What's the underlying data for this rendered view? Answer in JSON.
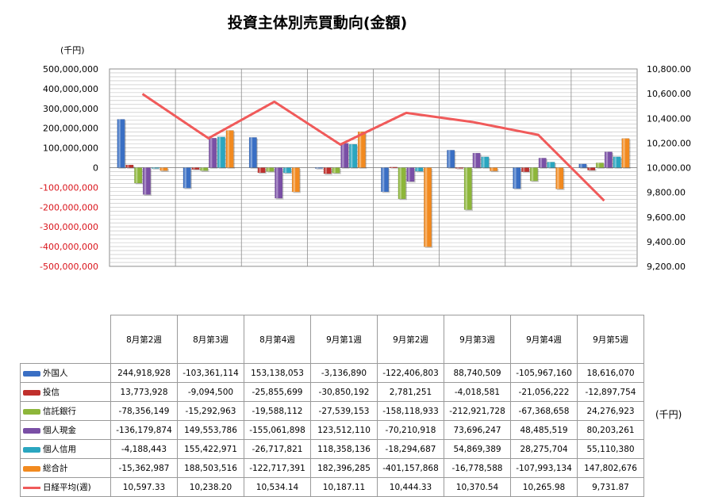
{
  "chart_data": {
    "type": "bar",
    "title": "投資主体別売買動向(金額)",
    "unit_left": "(千円)",
    "unit_right": "(千円)",
    "categories": [
      "8月第2週",
      "8月第3週",
      "8月第4週",
      "9月第1週",
      "9月第2週",
      "9月第3週",
      "9月第4週",
      "9月第5週"
    ],
    "y_left": {
      "min": -500000000,
      "max": 500000000,
      "step": 100000000,
      "tick_labels": [
        "500,000,000",
        "400,000,000",
        "300,000,000",
        "200,000,000",
        "100,000,000",
        "0",
        "-100,000,000",
        "-200,000,000",
        "-300,000,000",
        "-400,000,000",
        "-500,000,000"
      ],
      "tick_colors": [
        "#000000",
        "#000000",
        "#000000",
        "#000000",
        "#000000",
        "#000000",
        "#d9141b",
        "#d9141b",
        "#d9141b",
        "#d9141b",
        "#d9141b"
      ]
    },
    "y_right": {
      "min": 9200,
      "max": 10800,
      "step": 200,
      "tick_labels": [
        "10,800.00",
        "10,600.00",
        "10,400.00",
        "10,200.00",
        "10,000.00",
        "9,800.00",
        "9,600.00",
        "9,400.00",
        "9,200.00"
      ]
    },
    "grid": true,
    "series": [
      {
        "name": "外国人",
        "color": "#3a6fc4",
        "values": [
          244918928,
          -103361114,
          153138053,
          -3136890,
          -122406803,
          88740509,
          -105967160,
          18616070
        ],
        "labels": [
          "244,918,928",
          "-103,361,114",
          "153,138,053",
          "-3,136,890",
          "-122,406,803",
          "88,740,509",
          "-105,967,160",
          "18,616,070"
        ]
      },
      {
        "name": "投信",
        "color": "#c0302c",
        "values": [
          13773928,
          -9094500,
          -25855699,
          -30850192,
          2781251,
          -4018581,
          -21056222,
          -12897754
        ],
        "labels": [
          "13,773,928",
          "-9,094,500",
          "-25,855,699",
          "-30,850,192",
          "2,781,251",
          "-4,018,581",
          "-21,056,222",
          "-12,897,754"
        ]
      },
      {
        "name": "信託銀行",
        "color": "#8db63a",
        "values": [
          -78356149,
          -15292963,
          -19588112,
          -27539153,
          -158118933,
          -212921728,
          -67368658,
          24276923
        ],
        "labels": [
          "-78,356,149",
          "-15,292,963",
          "-19,588,112",
          "-27,539,153",
          "-158,118,933",
          "-212,921,728",
          "-67,368,658",
          "24,276,923"
        ]
      },
      {
        "name": "個人現金",
        "color": "#7a4fa6",
        "values": [
          -136179874,
          149553786,
          -155061898,
          123512110,
          -70210918,
          73696247,
          48485519,
          80203261
        ],
        "labels": [
          "-136,179,874",
          "149,553,786",
          "-155,061,898",
          "123,512,110",
          "-70,210,918",
          "73,696,247",
          "48,485,519",
          "80,203,261"
        ]
      },
      {
        "name": "個人信用",
        "color": "#2aa6c0",
        "values": [
          -4188443,
          155422971,
          -26717821,
          118358136,
          -18294687,
          54869389,
          28275704,
          55110380
        ],
        "labels": [
          "-4,188,443",
          "155,422,971",
          "-26,717,821",
          "118,358,136",
          "-18,294,687",
          "54,869,389",
          "28,275,704",
          "55,110,380"
        ]
      },
      {
        "name": "総合計",
        "color": "#f28a1f",
        "values": [
          -15362987,
          188503516,
          -122717391,
          182396285,
          -401157868,
          -16778588,
          -107993134,
          147802676
        ],
        "labels": [
          "-15,362,987",
          "188,503,516",
          "-122,717,391",
          "182,396,285",
          "-401,157,868",
          "-16,778,588",
          "-107,993,134",
          "147,802,676"
        ]
      }
    ],
    "line_series": {
      "name": "日経平均(週)",
      "color": "#f05a5a",
      "axis": "right",
      "values": [
        10597.33,
        10238.2,
        10534.14,
        10187.11,
        10444.33,
        10370.54,
        10265.98,
        9731.87
      ],
      "labels": [
        "10,597.33",
        "10,238.20",
        "10,534.14",
        "10,187.11",
        "10,444.33",
        "10,370.54",
        "10,265.98",
        "9,731.87"
      ]
    }
  }
}
